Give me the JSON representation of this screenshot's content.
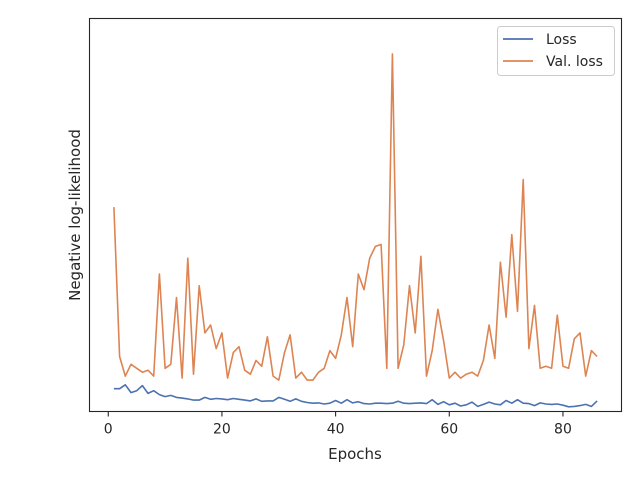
{
  "chart_data": {
    "type": "line",
    "title": "",
    "xlabel": "Epochs",
    "ylabel": "Negative log-likelihood",
    "xlim": [
      -3.3,
      90.3
    ],
    "ylim": [
      0,
      100
    ],
    "x_ticks": [
      0,
      20,
      40,
      60,
      80
    ],
    "x_tick_labels": [
      "0",
      "20",
      "40",
      "60",
      "80"
    ],
    "y_ticks_labeled": false,
    "grid": false,
    "legend": "top-right",
    "series": [
      {
        "name": "Loss",
        "color": "#4c72b0",
        "x": [
          1,
          2,
          3,
          4,
          5,
          6,
          7,
          8,
          9,
          10,
          11,
          12,
          13,
          14,
          15,
          16,
          17,
          18,
          19,
          20,
          21,
          22,
          23,
          24,
          25,
          26,
          27,
          28,
          29,
          30,
          31,
          32,
          33,
          34,
          35,
          36,
          37,
          38,
          39,
          40,
          41,
          42,
          43,
          44,
          45,
          46,
          47,
          48,
          49,
          50,
          51,
          52,
          53,
          54,
          55,
          56,
          57,
          58,
          59,
          60,
          61,
          62,
          63,
          64,
          65,
          66,
          67,
          68,
          69,
          70,
          71,
          72,
          73,
          74,
          75,
          76,
          77,
          78,
          79,
          80,
          81,
          82,
          83,
          84,
          85,
          86
        ],
        "values": [
          5.8,
          5.8,
          6.8,
          4.8,
          5.3,
          6.6,
          4.6,
          5.3,
          4.3,
          3.8,
          4.1,
          3.6,
          3.4,
          3.2,
          2.9,
          2.9,
          3.6,
          3.1,
          3.3,
          3.2,
          3.0,
          3.3,
          3.1,
          2.9,
          2.7,
          3.2,
          2.6,
          2.7,
          2.7,
          3.6,
          3.1,
          2.6,
          3.2,
          2.6,
          2.3,
          2.1,
          2.2,
          1.9,
          2.1,
          2.8,
          2.1,
          3.0,
          2.2,
          2.5,
          2.0,
          1.9,
          2.1,
          2.1,
          2.0,
          2.1,
          2.6,
          2.1,
          2.0,
          2.1,
          2.2,
          2.0,
          3.0,
          1.8,
          2.5,
          1.7,
          2.1,
          1.4,
          1.7,
          2.4,
          1.3,
          1.8,
          2.4,
          1.9,
          1.7,
          2.8,
          2.1,
          3.0,
          2.1,
          2.0,
          1.5,
          2.2,
          1.9,
          1.8,
          1.9,
          1.6,
          1.2,
          1.3,
          1.5,
          1.8,
          1.3,
          2.7
        ]
      },
      {
        "name": "Val. loss",
        "color": "#dd8452",
        "x": [
          1,
          2,
          3,
          4,
          5,
          6,
          7,
          8,
          9,
          10,
          11,
          12,
          13,
          14,
          15,
          16,
          17,
          18,
          19,
          20,
          21,
          22,
          23,
          24,
          25,
          26,
          27,
          28,
          29,
          30,
          31,
          32,
          33,
          34,
          35,
          36,
          37,
          38,
          39,
          40,
          41,
          42,
          43,
          44,
          45,
          46,
          47,
          48,
          49,
          50,
          51,
          52,
          53,
          54,
          55,
          56,
          57,
          58,
          59,
          60,
          61,
          62,
          63,
          64,
          65,
          66,
          67,
          68,
          69,
          70,
          71,
          72,
          73,
          74,
          75,
          76,
          77,
          78,
          79,
          80,
          81,
          82,
          83,
          84,
          85,
          86
        ],
        "values": [
          52,
          14,
          9,
          12,
          11,
          10,
          10.5,
          9,
          35,
          11,
          12,
          29,
          8.5,
          39,
          9.5,
          32,
          20,
          22,
          16,
          20,
          8.5,
          15,
          16.5,
          10.5,
          9.5,
          13,
          11.5,
          19,
          9,
          8,
          15,
          19.5,
          8.5,
          10,
          8,
          8,
          10,
          11,
          15.5,
          13.5,
          19.5,
          29,
          16.5,
          35,
          31,
          39,
          42,
          42.5,
          11,
          91,
          11,
          17,
          32,
          20,
          39.5,
          9,
          15.5,
          26,
          18,
          8.5,
          10,
          8.5,
          9.5,
          10,
          9,
          13,
          22,
          13.5,
          38,
          24,
          45,
          25.5,
          59,
          16,
          27,
          11,
          11.5,
          11,
          24.5,
          11.5,
          11,
          18.5,
          20,
          9,
          15.5,
          14
        ]
      }
    ]
  }
}
